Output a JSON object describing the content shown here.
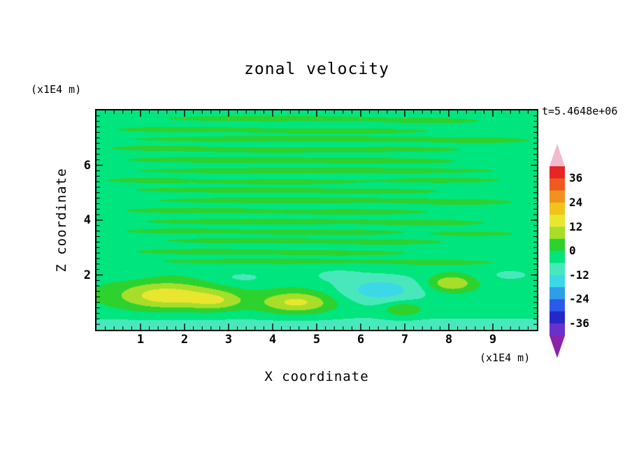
{
  "chart_data": {
    "type": "contour",
    "title": "zonal velocity",
    "time_annotation": "t=5.4648e+06",
    "xlabel": "X coordinate",
    "ylabel": "Z coordinate",
    "x_unit": "(x1E4 m)",
    "y_unit": "(x1E4 m)",
    "xlim": [
      0,
      10
    ],
    "ylim": [
      0,
      8
    ],
    "xticks": [
      1,
      2,
      3,
      4,
      5,
      6,
      7,
      8,
      9
    ],
    "yticks": [
      2,
      4,
      6
    ],
    "x_minor_step": 0.2,
    "y_minor_step": 0.2,
    "contour_levels": [
      -42,
      -36,
      -30,
      -24,
      -18,
      -12,
      -6,
      0,
      6,
      12,
      18,
      24,
      30,
      36,
      42
    ],
    "palette": [
      "#8a22aa",
      "#6a30cc",
      "#2428c8",
      "#2a5ae8",
      "#2e9ee8",
      "#3cd8e8",
      "#48e8bc",
      "#00e57d",
      "#2ed22e",
      "#a6de2a",
      "#e8e62e",
      "#f2c21e",
      "#f2921e",
      "#ee5a20",
      "#e62525",
      "#f2bace"
    ],
    "colorbar_labels": [
      36,
      24,
      12,
      0,
      -12,
      -24,
      -36
    ],
    "field": {
      "description": "approximate zonal velocity field: background near -2 with alternating shear streaks aloft, positive (yellow) cells and a negative (cyan) cell near the surface, and a negative band along the bottom boundary",
      "base_value": -2,
      "bottom_band": {
        "amplitude": -7,
        "height": 0.55
      },
      "features": [
        {
          "x": 4.0,
          "z": 7.7,
          "rx": 2.5,
          "rz": 0.1,
          "a": 5
        },
        {
          "x": 7.6,
          "z": 7.62,
          "rx": 1.1,
          "rz": 0.09,
          "a": 5
        },
        {
          "x": 2.0,
          "z": 7.3,
          "rx": 1.6,
          "rz": 0.1,
          "a": 5
        },
        {
          "x": 5.6,
          "z": 7.25,
          "rx": 2.0,
          "rz": 0.1,
          "a": 5
        },
        {
          "x": 4.5,
          "z": 6.95,
          "rx": 3.8,
          "rz": 0.11,
          "a": 5
        },
        {
          "x": 8.7,
          "z": 6.9,
          "rx": 1.0,
          "rz": 0.09,
          "a": 5
        },
        {
          "x": 1.5,
          "z": 6.62,
          "rx": 1.2,
          "rz": 0.09,
          "a": 5
        },
        {
          "x": 4.1,
          "z": 6.55,
          "rx": 1.8,
          "rz": 0.1,
          "a": 5
        },
        {
          "x": 6.9,
          "z": 6.58,
          "rx": 1.4,
          "rz": 0.09,
          "a": 5
        },
        {
          "x": 3.0,
          "z": 6.2,
          "rx": 2.4,
          "rz": 0.11,
          "a": 5
        },
        {
          "x": 6.6,
          "z": 6.15,
          "rx": 1.6,
          "rz": 0.1,
          "a": 5
        },
        {
          "x": 5.0,
          "z": 5.8,
          "rx": 4.2,
          "rz": 0.11,
          "a": 5
        },
        {
          "x": 1.2,
          "z": 5.45,
          "rx": 1.0,
          "rz": 0.09,
          "a": 5
        },
        {
          "x": 4.2,
          "z": 5.4,
          "rx": 1.8,
          "rz": 0.1,
          "a": 5
        },
        {
          "x": 7.9,
          "z": 5.45,
          "rx": 1.3,
          "rz": 0.09,
          "a": 5
        },
        {
          "x": 3.0,
          "z": 5.1,
          "rx": 2.2,
          "rz": 0.1,
          "a": 5
        },
        {
          "x": 6.3,
          "z": 5.05,
          "rx": 1.5,
          "rz": 0.09,
          "a": 5
        },
        {
          "x": 4.5,
          "z": 4.72,
          "rx": 3.2,
          "rz": 0.11,
          "a": 5
        },
        {
          "x": 8.3,
          "z": 4.65,
          "rx": 1.1,
          "rz": 0.09,
          "a": 5
        },
        {
          "x": 2.2,
          "z": 4.35,
          "rx": 1.6,
          "rz": 0.1,
          "a": 5
        },
        {
          "x": 5.8,
          "z": 4.3,
          "rx": 1.8,
          "rz": 0.1,
          "a": 5
        },
        {
          "x": 3.8,
          "z": 3.95,
          "rx": 2.8,
          "rz": 0.11,
          "a": 5
        },
        {
          "x": 7.6,
          "z": 3.9,
          "rx": 1.2,
          "rz": 0.09,
          "a": 5
        },
        {
          "x": 2.0,
          "z": 3.6,
          "rx": 1.4,
          "rz": 0.09,
          "a": 5
        },
        {
          "x": 5.2,
          "z": 3.55,
          "rx": 1.8,
          "rz": 0.1,
          "a": 5
        },
        {
          "x": 8.6,
          "z": 3.5,
          "rx": 0.9,
          "rz": 0.08,
          "a": 5
        },
        {
          "x": 3.5,
          "z": 3.25,
          "rx": 2.0,
          "rz": 0.1,
          "a": 5
        },
        {
          "x": 6.6,
          "z": 3.2,
          "rx": 1.3,
          "rz": 0.09,
          "a": 5
        },
        {
          "x": 2.6,
          "z": 2.85,
          "rx": 1.8,
          "rz": 0.1,
          "a": 5
        },
        {
          "x": 5.6,
          "z": 2.8,
          "rx": 1.5,
          "rz": 0.09,
          "a": 5
        },
        {
          "x": 4.0,
          "z": 2.5,
          "rx": 2.6,
          "rz": 0.1,
          "a": 5
        },
        {
          "x": 7.8,
          "z": 2.45,
          "rx": 1.3,
          "rz": 0.09,
          "a": 5
        },
        {
          "x": 1.6,
          "z": 1.25,
          "rx": 1.15,
          "rz": 0.5,
          "a": 18
        },
        {
          "x": 2.75,
          "z": 1.05,
          "rx": 0.6,
          "rz": 0.35,
          "a": 10
        },
        {
          "x": 4.55,
          "z": 1.0,
          "rx": 0.85,
          "rz": 0.4,
          "a": 16
        },
        {
          "x": 8.05,
          "z": 1.7,
          "rx": 0.5,
          "rz": 0.3,
          "a": 15
        },
        {
          "x": 6.95,
          "z": 0.75,
          "rx": 0.45,
          "rz": 0.28,
          "a": 10
        },
        {
          "x": 6.45,
          "z": 1.45,
          "rx": 1.05,
          "rz": 0.55,
          "a": -13
        },
        {
          "x": 3.3,
          "z": 1.9,
          "rx": 0.8,
          "rz": 0.3,
          "a": -5
        },
        {
          "x": 5.4,
          "z": 2.0,
          "rx": 0.6,
          "rz": 0.25,
          "a": -4.5
        },
        {
          "x": 0.7,
          "z": 2.1,
          "rx": 0.5,
          "rz": 0.25,
          "a": -4.5
        },
        {
          "x": 9.4,
          "z": 2.0,
          "rx": 0.7,
          "rz": 0.3,
          "a": -5
        }
      ]
    }
  }
}
